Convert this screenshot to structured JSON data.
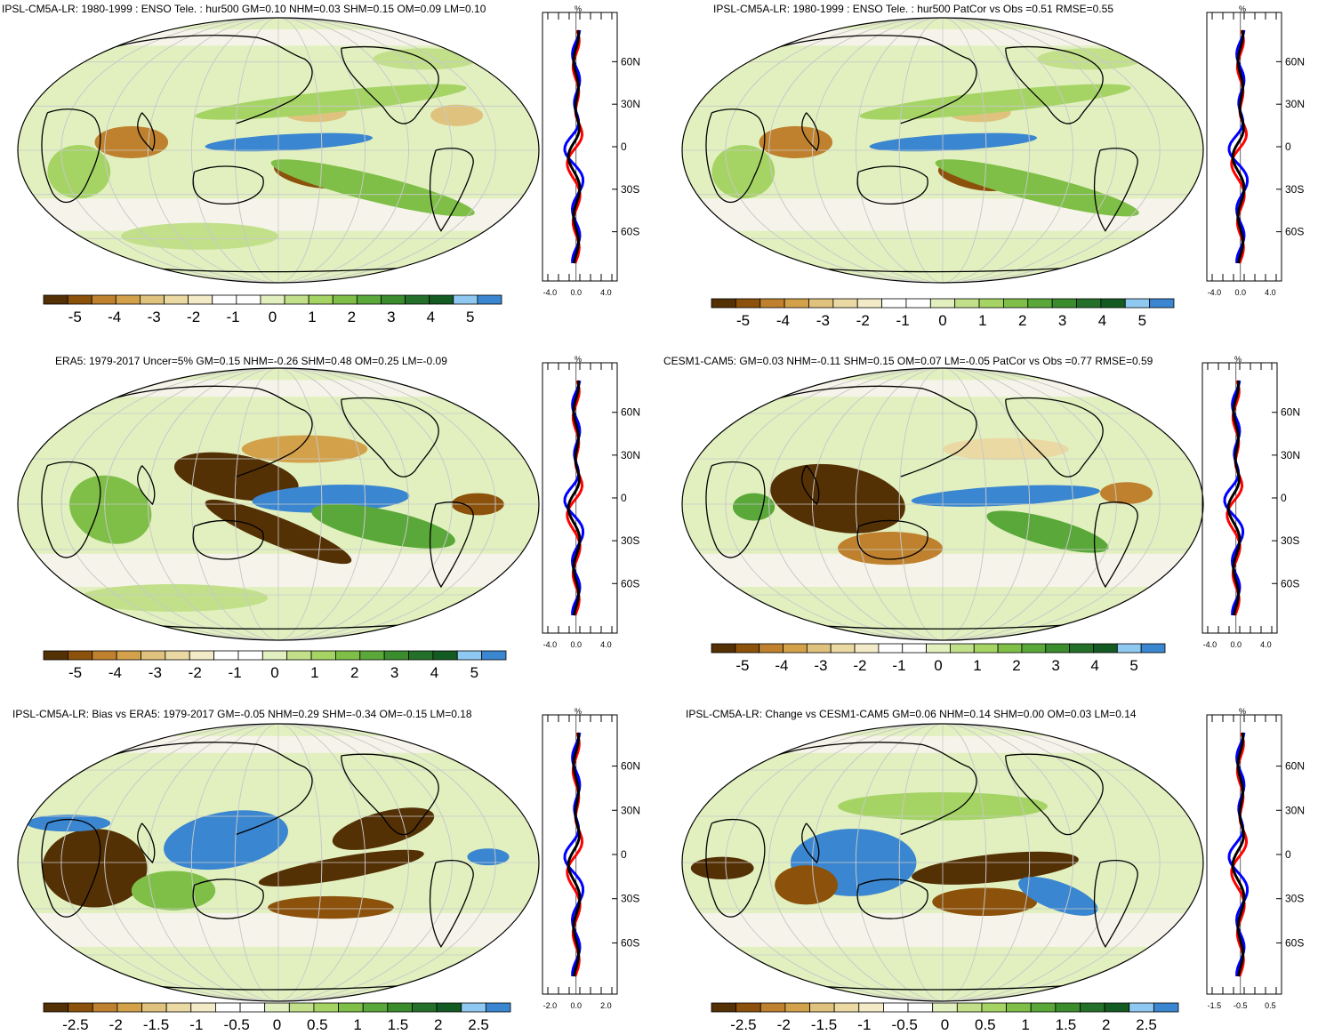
{
  "colors": {
    "neg": [
      "#543005",
      "#8c510a",
      "#bf812d",
      "#d3a14a",
      "#dfc27d",
      "#ebd9a3",
      "#f3ebc8"
    ],
    "neutral": "#ffffff",
    "pos": [
      "#e2f0c0",
      "#c2e08a",
      "#a5d465",
      "#7fbf48",
      "#5aa83a",
      "#3b8c2c",
      "#24702a",
      "#145a23",
      "#8fc8f0",
      "#3a86d0"
    ],
    "obs_line": "#ff0000",
    "model_line": "#0000ff",
    "diff_line": "#000000"
  },
  "panels": [
    {
      "title": "IPSL-CM5A-LR: 1980-1999 : ENSO Tele. : hur500 GM=0.10 NHM=0.03 SHM=0.15 OM=0.09 LM=0.10",
      "cbar_labels": [
        "-5",
        "-4",
        "-3",
        "-2",
        "-1",
        "0",
        "1",
        "2",
        "3",
        "4",
        "5"
      ],
      "zonal_xticks": [
        "-4.0",
        "0.0",
        "4.0"
      ],
      "lat_labels": [
        "60N",
        "30N",
        "0",
        "30S",
        "60S"
      ],
      "unit": "%"
    },
    {
      "title": "IPSL-CM5A-LR: 1980-1999 : ENSO Tele. : hur500 PatCor vs Obs =0.51 RMSE=0.55",
      "cbar_labels": [
        "-5",
        "-4",
        "-3",
        "-2",
        "-1",
        "0",
        "1",
        "2",
        "3",
        "4",
        "5"
      ],
      "zonal_xticks": [
        "-4.0",
        "0.0",
        "4.0"
      ],
      "lat_labels": [
        "60N",
        "30N",
        "0",
        "30S",
        "60S"
      ],
      "unit": "%"
    },
    {
      "title": "ERA5: 1979-2017 Uncer=5% GM=0.15 NHM=-0.26 SHM=0.48 OM=0.25 LM=-0.09",
      "cbar_labels": [
        "-5",
        "-4",
        "-3",
        "-2",
        "-1",
        "0",
        "1",
        "2",
        "3",
        "4",
        "5"
      ],
      "zonal_xticks": [
        "-4.0",
        "0.0",
        "4.0"
      ],
      "lat_labels": [
        "60N",
        "30N",
        "0",
        "30S",
        "60S"
      ],
      "unit": "%"
    },
    {
      "title": "CESM1-CAM5: GM=0.03 NHM=-0.11 SHM=0.15 OM=0.07 LM=-0.05 PatCor vs Obs =0.77 RMSE=0.59",
      "cbar_labels": [
        "-5",
        "-4",
        "-3",
        "-2",
        "-1",
        "0",
        "1",
        "2",
        "3",
        "4",
        "5"
      ],
      "zonal_xticks": [
        "-4.0",
        "0.0",
        "4.0"
      ],
      "lat_labels": [
        "60N",
        "30N",
        "0",
        "30S",
        "60S"
      ],
      "unit": "%"
    },
    {
      "title": "IPSL-CM5A-LR: Bias vs ERA5: 1979-2017 GM=-0.05 NHM=0.29 SHM=-0.34 OM=-0.15 LM=0.18",
      "cbar_labels": [
        "-2.5",
        "-2",
        "-1.5",
        "-1",
        "-0.5",
        "0",
        "0.5",
        "1",
        "1.5",
        "2",
        "2.5"
      ],
      "zonal_xticks": [
        "-2.0",
        "0.0",
        "2.0"
      ],
      "lat_labels": [
        "60N",
        "30N",
        "0",
        "30S",
        "60S"
      ],
      "unit": "%"
    },
    {
      "title": "IPSL-CM5A-LR: Change vs CESM1-CAM5 GM=0.06 NHM=0.14 SHM=0.00 OM=0.03 LM=0.14",
      "cbar_labels": [
        "-2.5",
        "-2",
        "-1.5",
        "-1",
        "-0.5",
        "0",
        "0.5",
        "1",
        "1.5",
        "2",
        "2.5"
      ],
      "zonal_xticks": [
        "-1.5",
        "-0.5",
        "0.5"
      ],
      "lat_labels": [
        "60N",
        "30N",
        "0",
        "30S",
        "60S"
      ],
      "unit": "%"
    }
  ]
}
